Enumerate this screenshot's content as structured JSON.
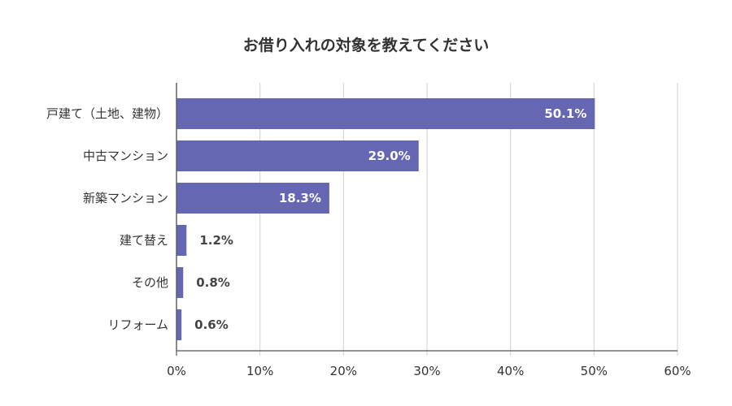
{
  "chart_data": {
    "type": "bar",
    "orientation": "horizontal",
    "title": "お借り入れの対象を教えてください",
    "categories": [
      "戸建て（土地、建物）",
      "中古マンション",
      "新築マンション",
      "建て替え",
      "その他",
      "リフォーム"
    ],
    "values": [
      50.1,
      29.0,
      18.3,
      1.2,
      0.8,
      0.6
    ],
    "value_labels": [
      "50.1%",
      "29.0%",
      "18.3%",
      "1.2%",
      "0.8%",
      "0.6%"
    ],
    "xlim": [
      0,
      60
    ],
    "xticks": [
      0,
      10,
      20,
      30,
      40,
      50,
      60
    ],
    "xtick_labels": [
      "0%",
      "10%",
      "20%",
      "30%",
      "40%",
      "50%",
      "60%"
    ],
    "xlabel": "",
    "ylabel": "",
    "grid": true,
    "legend": "none",
    "bar_color": "#6567b3"
  }
}
